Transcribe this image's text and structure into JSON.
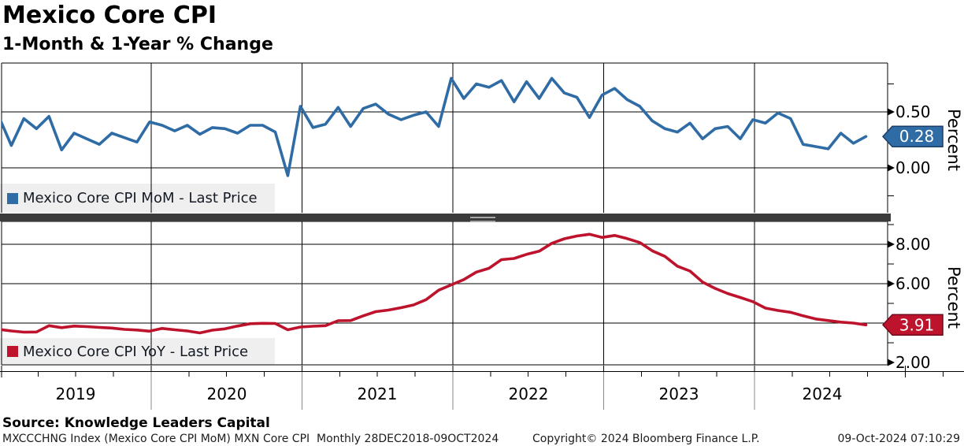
{
  "header": {
    "title": "Mexico Core CPI",
    "subtitle": "1-Month & 1-Year % Change"
  },
  "panels": [
    {
      "legend_label": "Mexico Core CPI MoM - Last Price",
      "last_price": "0.28",
      "axis_title": "Percent",
      "tick_labels": [
        "0.50",
        "0.00"
      ],
      "color": "#2f6ca6"
    },
    {
      "legend_label": "Mexico Core CPI YoY - Last Price",
      "last_price": "3.91",
      "axis_title": "Percent",
      "tick_labels": [
        "8.00",
        "6.00",
        "2.00"
      ],
      "color": "#bd132c"
    }
  ],
  "x_axis": {
    "year_labels": [
      "2019",
      "2020",
      "2021",
      "2022",
      "2023",
      "2024"
    ]
  },
  "footer": {
    "source": "Source: Knowledge Leaders Capital",
    "security_line": "MXCCCHNG Index (Mexico Core CPI MoM) MXN Core CPI  Monthly 28DEC2018-09OCT2024",
    "copyright": "Copyright© 2024 Bloomberg Finance L.P.",
    "timestamp": "09-Oct-2024 07:10:29"
  },
  "chart_data": [
    {
      "type": "line",
      "name": "Mexico Core CPI MoM - Last Price",
      "panel": "top",
      "color": "#2f6ca6",
      "start": "Dec 2018",
      "frequency": "monthly",
      "ylabel": "Percent",
      "yticks_labeled": [
        0.5,
        0.0
      ],
      "ylim": [
        -0.4,
        0.94
      ],
      "last_price": 0.28,
      "values": [
        0.46,
        0.2,
        0.44,
        0.35,
        0.46,
        0.16,
        0.31,
        0.26,
        0.21,
        0.31,
        0.27,
        0.23,
        0.41,
        0.38,
        0.33,
        0.38,
        0.3,
        0.36,
        0.35,
        0.31,
        0.38,
        0.38,
        0.32,
        -0.07,
        0.55,
        0.36,
        0.39,
        0.54,
        0.37,
        0.53,
        0.57,
        0.48,
        0.43,
        0.47,
        0.5,
        0.37,
        0.8,
        0.62,
        0.75,
        0.72,
        0.78,
        0.59,
        0.77,
        0.62,
        0.8,
        0.67,
        0.63,
        0.45,
        0.65,
        0.71,
        0.61,
        0.55,
        0.42,
        0.35,
        0.32,
        0.4,
        0.26,
        0.35,
        0.37,
        0.26,
        0.43,
        0.4,
        0.49,
        0.44,
        0.21,
        0.19,
        0.17,
        0.31,
        0.22,
        0.28
      ]
    },
    {
      "type": "line",
      "name": "Mexico Core CPI YoY - Last Price",
      "panel": "bottom",
      "color": "#bd132c",
      "start": "Dec 2018",
      "frequency": "monthly",
      "ylabel": "Percent",
      "yticks_labeled": [
        8.0,
        6.0,
        2.0
      ],
      "ylim": [
        1.9,
        9.2
      ],
      "last_price": 3.91,
      "values": [
        3.68,
        3.6,
        3.54,
        3.55,
        3.87,
        3.77,
        3.85,
        3.82,
        3.78,
        3.75,
        3.68,
        3.65,
        3.59,
        3.73,
        3.66,
        3.6,
        3.5,
        3.64,
        3.71,
        3.85,
        3.97,
        3.99,
        3.98,
        3.66,
        3.8,
        3.84,
        3.87,
        4.12,
        4.13,
        4.37,
        4.58,
        4.66,
        4.78,
        4.92,
        5.19,
        5.67,
        5.94,
        6.21,
        6.59,
        6.78,
        7.22,
        7.28,
        7.49,
        7.65,
        8.05,
        8.28,
        8.42,
        8.51,
        8.35,
        8.45,
        8.29,
        8.09,
        7.67,
        7.39,
        6.89,
        6.64,
        6.08,
        5.76,
        5.5,
        5.3,
        5.09,
        4.76,
        4.64,
        4.55,
        4.37,
        4.21,
        4.13,
        4.05,
        4.0,
        3.91
      ]
    }
  ]
}
